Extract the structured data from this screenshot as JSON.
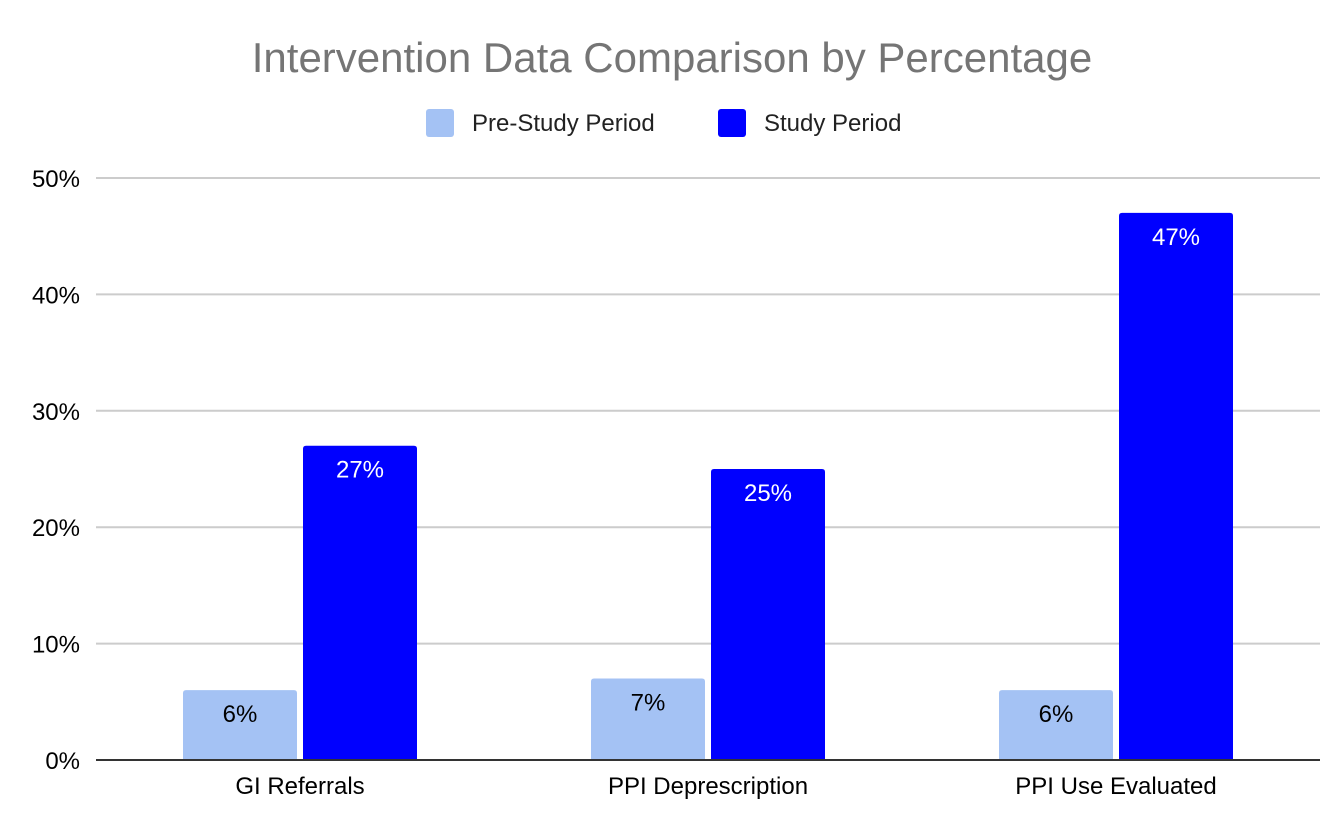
{
  "chart_data": {
    "type": "bar",
    "title": "Intervention Data Comparison by Percentage",
    "categories": [
      "GI Referrals",
      "PPI Deprescription",
      "PPI Use Evaluated"
    ],
    "series": [
      {
        "name": "Pre-Study Period",
        "color": "#a4c2f4",
        "label_color": "#000000",
        "values": [
          6,
          7,
          6
        ],
        "labels": [
          "6%",
          "7%",
          "6%"
        ]
      },
      {
        "name": "Study Period",
        "color": "#0000ff",
        "label_color": "#ffffff",
        "values": [
          27,
          25,
          47
        ],
        "labels": [
          "27%",
          "25%",
          "47%"
        ]
      }
    ],
    "ylim": [
      0,
      50
    ],
    "yticks": [
      0,
      10,
      20,
      30,
      40,
      50
    ],
    "ytick_labels": [
      "0%",
      "10%",
      "20%",
      "30%",
      "40%",
      "50%"
    ],
    "grid": true,
    "legend_position": "top-center",
    "xlabel": "",
    "ylabel": ""
  }
}
